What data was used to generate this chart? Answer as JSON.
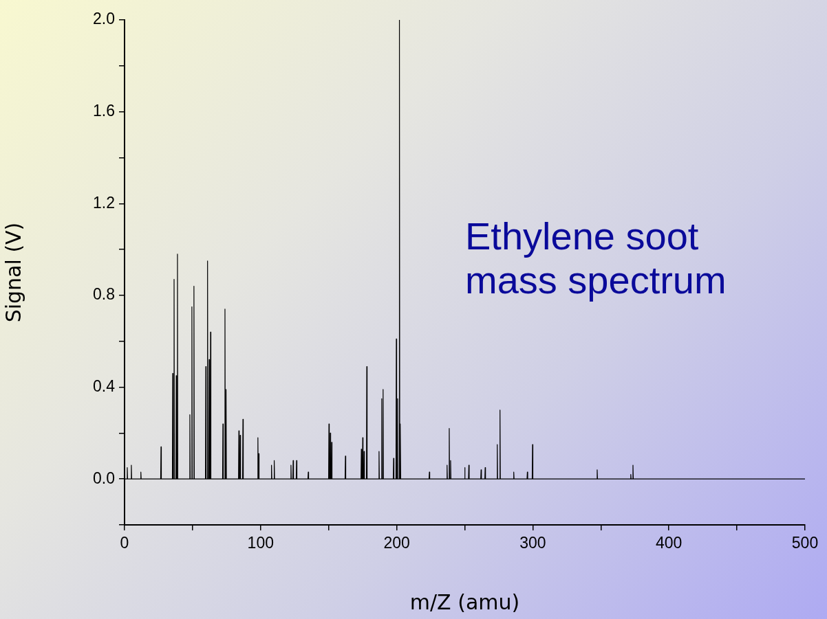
{
  "chart_data": {
    "type": "line",
    "xlabel": "m/Z (amu)",
    "ylabel": "Signal (V)",
    "annotations": [
      "Ethylene soot mass spectrum"
    ],
    "xlim": [
      0,
      500
    ],
    "xticks": [
      0,
      {
        "value": 50,
        "label": null
      },
      100,
      {
        "value": 150,
        "label": null
      },
      200,
      {
        "value": 250,
        "label": null
      },
      300,
      {
        "value": 350,
        "label": null
      },
      400,
      {
        "value": 450,
        "label": null
      },
      500
    ],
    "ylim": [
      -0.2,
      2.0
    ],
    "yticks": [
      {
        "value": -0.2,
        "label": null
      },
      {
        "value": 0,
        "label": "0.0"
      },
      {
        "value": 0.2,
        "label": null
      },
      {
        "value": 0.4,
        "label": "0.4"
      },
      {
        "value": 0.6,
        "label": null
      },
      {
        "value": 0.8,
        "label": "0.8"
      },
      {
        "value": 1.0,
        "label": null
      },
      {
        "value": 1.2,
        "label": "1.2"
      },
      {
        "value": 1.4,
        "label": null
      },
      {
        "value": 1.6,
        "label": "1.6"
      },
      {
        "value": 1.8,
        "label": null
      },
      {
        "value": 2.0,
        "label": "2.0"
      }
    ],
    "grid": false,
    "legend": false,
    "marker": "none",
    "line_style": "solid",
    "series": [
      {
        "color": "#000000",
        "x": [
          0,
          1.75,
          2,
          2.25,
          4.75,
          5,
          5.25,
          11.75,
          12,
          12.25,
          26.55,
          26.8,
          27.05,
          35.15,
          35.4,
          35.65,
          36.15,
          36.4,
          36.65,
          37.75,
          38,
          38.25,
          38.65,
          38.9,
          39.15,
          47.75,
          48,
          48.25,
          49.25,
          49.5,
          49.75,
          50.75,
          51,
          51.25,
          59.45,
          59.7,
          59.95,
          60.75,
          61,
          61.25,
          61.95,
          62.2,
          62.45,
          62.95,
          63.2,
          63.45,
          72.05,
          72.3,
          72.55,
          73.55,
          73.8,
          74.05,
          74.35,
          74.6,
          74.85,
          83.75,
          84,
          84.25,
          84.75,
          85,
          85.25,
          86.75,
          87,
          87.25,
          97.75,
          98,
          98.25,
          98.35,
          98.6,
          98.85,
          107.75,
          108,
          108.25,
          109.75,
          110,
          110.25,
          122.05,
          122.3,
          122.55,
          123.65,
          123.9,
          124.15,
          126.15,
          126.4,
          126.65,
          134.75,
          135,
          135.25,
          149.95,
          150.2,
          150.45,
          150.95,
          151.2,
          151.45,
          151.95,
          152.2,
          152.45,
          162.05,
          162.3,
          162.55,
          173.75,
          174,
          174.25,
          174.75,
          175,
          175.25,
          175.75,
          176,
          176.25,
          177.75,
          178,
          178.25,
          186.75,
          187,
          187.25,
          188.75,
          189,
          189.25,
          189.75,
          190,
          190.25,
          197.45,
          197.7,
          197.95,
          199.45,
          199.7,
          199.95,
          200.45,
          200.7,
          200.95,
          201.75,
          202,
          202.25,
          202.45,
          202.7,
          202.95,
          223.75,
          224,
          224.25,
          236.75,
          237,
          237.25,
          238.35,
          238.6,
          238.85,
          239.35,
          239.6,
          239.85,
          249.75,
          250,
          250.25,
          252.75,
          253,
          253.25,
          261.75,
          262,
          262.25,
          264.75,
          265,
          265.25,
          273.65,
          273.9,
          274.15,
          275.65,
          275.9,
          276.15,
          285.75,
          286,
          286.25,
          295.75,
          296,
          296.25,
          299.55,
          299.8,
          300.05,
          347.05,
          347.3,
          347.55,
          371.75,
          372,
          372.25,
          373.35,
          373.6,
          373.85,
          500
        ],
        "values": [
          0,
          0,
          0.05,
          0,
          0,
          0.06,
          0,
          0,
          0.03,
          0,
          0,
          0.14,
          0,
          0,
          0.46,
          0,
          0,
          0.87,
          0,
          0,
          0.45,
          0,
          0,
          0.98,
          0,
          0,
          0.28,
          0,
          0,
          0.75,
          0,
          0,
          0.84,
          0,
          0,
          0.49,
          0,
          0,
          0.95,
          0,
          0,
          0.52,
          0,
          0,
          0.64,
          0,
          0,
          0.24,
          0,
          0,
          0.74,
          0,
          0,
          0.39,
          0,
          0,
          0.21,
          0,
          0,
          0.19,
          0,
          0,
          0.26,
          0,
          0,
          0.18,
          0,
          0,
          0.11,
          0,
          0,
          0.06,
          0,
          0,
          0.08,
          0,
          0,
          0.06,
          0,
          0,
          0.08,
          0,
          0,
          0.08,
          0,
          0,
          0.03,
          0,
          0,
          0.24,
          0,
          0,
          0.2,
          0,
          0,
          0.16,
          0,
          0,
          0.1,
          0,
          0,
          0.13,
          0,
          0,
          0.18,
          0,
          0,
          0.12,
          0,
          0,
          0.49,
          0,
          0,
          0.12,
          0,
          0,
          0.35,
          0,
          0,
          0.39,
          0,
          0,
          0.09,
          0,
          0,
          0.61,
          0,
          0,
          0.35,
          0,
          0,
          2.0,
          0,
          0,
          0.24,
          0,
          0,
          0.03,
          0,
          0,
          0.06,
          0,
          0,
          0.22,
          0,
          0,
          0.08,
          0,
          0,
          0.05,
          0,
          0,
          0.06,
          0,
          0,
          0.04,
          0,
          0,
          0.05,
          0,
          0,
          0.15,
          0,
          0,
          0.3,
          0,
          0,
          0.03,
          0,
          0,
          0.03,
          0,
          0,
          0.15,
          0,
          0,
          0.04,
          0,
          0,
          0.02,
          0,
          0,
          0.06,
          0,
          0
        ]
      }
    ]
  }
}
